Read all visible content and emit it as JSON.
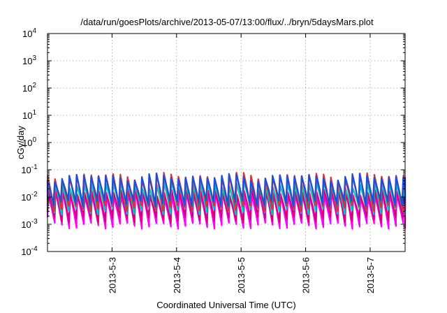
{
  "chart_data": {
    "type": "line",
    "title": "/data/run/goesPlots/archive/2013-05-07/13:00/flux/../bryn/5daysMars.plot",
    "xlabel": "Coordinated Universal Time (UTC)",
    "ylabel": "cGy/day",
    "y_scale": "log",
    "ylim": [
      0.0001,
      10000
    ],
    "xlim": [
      "2013-05-02T00:00",
      "2013-05-07T13:00"
    ],
    "y_ticks": [
      {
        "base": "10",
        "exp": "-4"
      },
      {
        "base": "10",
        "exp": "-3"
      },
      {
        "base": "10",
        "exp": "-2"
      },
      {
        "base": "10",
        "exp": "-1"
      },
      {
        "base": "10",
        "exp": "0"
      },
      {
        "base": "10",
        "exp": "1"
      },
      {
        "base": "10",
        "exp": "2"
      },
      {
        "base": "10",
        "exp": "3"
      },
      {
        "base": "10",
        "exp": "4"
      }
    ],
    "x_ticks": [
      "2013-5-3",
      "2013-5-4",
      "2013-5-5",
      "2013-5-6",
      "2013-5-7"
    ],
    "grid": true,
    "legend": "none",
    "sawtooth_period_hours": 2.7,
    "series": [
      {
        "color": "#ff00ff",
        "peak": 0.012,
        "trough": 0.0009
      },
      {
        "color": "#d40078",
        "peak": 0.016,
        "trough": 0.0015
      },
      {
        "color": "#00c8c8",
        "peak": 0.03,
        "trough": 0.003
      },
      {
        "color": "#e03030",
        "peak": 0.06,
        "trough": 0.004
      },
      {
        "color": "#1f4fd8",
        "peak": 0.055,
        "trough": 0.006
      }
    ]
  }
}
